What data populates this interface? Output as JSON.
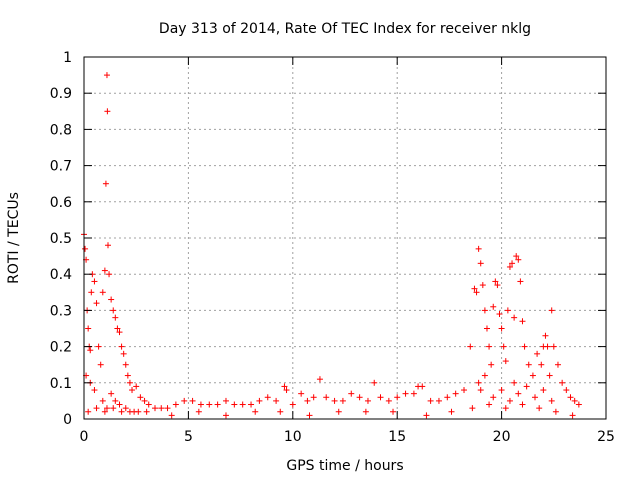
{
  "chart_data": {
    "type": "scatter",
    "title": "Day 313 of 2014, Rate Of TEC Index for receiver nklg",
    "xlabel": "GPS time / hours",
    "ylabel": "ROTI / TECUs",
    "xlim": [
      0,
      25
    ],
    "ylim": [
      0,
      1
    ],
    "xticks": [
      0,
      5,
      10,
      15,
      20,
      25
    ],
    "yticks": [
      0,
      0.1,
      0.2,
      0.3,
      0.4,
      0.5,
      0.6,
      0.7,
      0.8,
      0.9,
      1
    ],
    "xtick_labels": [
      "0",
      "5",
      "10",
      "15",
      "20",
      "25"
    ],
    "ytick_labels": [
      "0",
      "0.1",
      "0.2",
      "0.3",
      "0.4",
      "0.5",
      "0.6",
      "0.7",
      "0.8",
      "0.9",
      "1"
    ],
    "grid": true,
    "marker": "+",
    "series": [
      {
        "color": "#ff0000",
        "x": [
          0.0,
          0.05,
          0.1,
          0.15,
          0.2,
          0.25,
          0.3,
          0.35,
          0.4,
          0.5,
          0.6,
          0.7,
          0.8,
          0.9,
          1.0,
          1.05,
          1.1,
          1.12,
          1.15,
          1.2,
          1.3,
          1.4,
          1.5,
          1.6,
          1.7,
          1.8,
          1.9,
          2.0,
          2.1,
          2.2,
          2.3,
          2.5,
          2.7,
          2.9,
          3.1,
          3.4,
          3.7,
          4.0,
          4.4,
          4.8,
          5.2,
          5.6,
          6.0,
          6.4,
          6.8,
          7.2,
          7.6,
          8.0,
          8.4,
          8.8,
          9.2,
          9.6,
          9.7,
          10.0,
          10.4,
          10.7,
          11.0,
          11.3,
          11.6,
          12.0,
          12.4,
          12.8,
          13.2,
          13.6,
          13.9,
          14.2,
          14.6,
          15.0,
          15.4,
          15.8,
          16.0,
          16.2,
          16.6,
          17.0,
          17.4,
          17.8,
          18.2,
          18.5,
          18.7,
          18.8,
          18.9,
          19.0,
          19.1,
          19.2,
          19.3,
          19.4,
          19.5,
          19.6,
          19.7,
          19.8,
          19.9,
          20.0,
          20.1,
          20.2,
          20.3,
          20.4,
          20.5,
          20.6,
          20.7,
          20.8,
          20.9,
          21.0,
          21.1,
          21.3,
          21.5,
          21.7,
          21.9,
          22.0,
          22.1,
          22.2,
          22.3,
          22.4,
          22.5,
          22.7,
          22.9,
          23.1,
          23.3,
          23.5,
          23.7,
          0.1,
          0.3,
          0.5,
          0.9,
          1.1,
          1.3,
          1.5,
          1.7,
          2.0,
          2.4,
          18.9,
          19.0,
          19.2,
          19.6,
          20.0,
          20.4,
          20.6,
          20.8,
          21.2,
          21.6,
          22.0,
          22.4,
          0.2,
          0.6,
          1.0,
          1.4,
          1.8,
          2.2,
          2.6,
          3.0,
          4.2,
          5.5,
          6.8,
          8.2,
          9.4,
          10.8,
          12.2,
          13.5,
          14.8,
          16.4,
          17.6,
          18.6,
          19.4,
          20.2,
          21.0,
          21.8,
          22.6,
          23.4
        ],
        "y": [
          0.51,
          0.47,
          0.44,
          0.3,
          0.25,
          0.2,
          0.19,
          0.35,
          0.4,
          0.38,
          0.32,
          0.2,
          0.15,
          0.35,
          0.41,
          0.65,
          0.95,
          0.85,
          0.48,
          0.4,
          0.33,
          0.3,
          0.28,
          0.25,
          0.24,
          0.2,
          0.18,
          0.15,
          0.12,
          0.1,
          0.08,
          0.09,
          0.06,
          0.05,
          0.04,
          0.03,
          0.03,
          0.03,
          0.04,
          0.05,
          0.05,
          0.04,
          0.04,
          0.04,
          0.05,
          0.04,
          0.04,
          0.04,
          0.05,
          0.06,
          0.05,
          0.09,
          0.08,
          0.04,
          0.07,
          0.05,
          0.06,
          0.11,
          0.06,
          0.05,
          0.05,
          0.07,
          0.06,
          0.05,
          0.1,
          0.06,
          0.05,
          0.06,
          0.07,
          0.07,
          0.09,
          0.09,
          0.05,
          0.05,
          0.06,
          0.07,
          0.08,
          0.2,
          0.36,
          0.35,
          0.47,
          0.43,
          0.37,
          0.3,
          0.25,
          0.2,
          0.15,
          0.31,
          0.38,
          0.37,
          0.29,
          0.25,
          0.2,
          0.16,
          0.3,
          0.42,
          0.43,
          0.28,
          0.45,
          0.44,
          0.38,
          0.27,
          0.2,
          0.15,
          0.12,
          0.18,
          0.15,
          0.2,
          0.23,
          0.2,
          0.12,
          0.3,
          0.2,
          0.15,
          0.1,
          0.08,
          0.06,
          0.05,
          0.04,
          0.12,
          0.1,
          0.08,
          0.05,
          0.03,
          0.07,
          0.05,
          0.04,
          0.03,
          0.02,
          0.1,
          0.08,
          0.12,
          0.06,
          0.08,
          0.05,
          0.1,
          0.07,
          0.09,
          0.06,
          0.08,
          0.05,
          0.02,
          0.03,
          0.02,
          0.03,
          0.02,
          0.02,
          0.02,
          0.02,
          0.01,
          0.02,
          0.01,
          0.02,
          0.02,
          0.01,
          0.02,
          0.02,
          0.02,
          0.01,
          0.02,
          0.03,
          0.04,
          0.03,
          0.04,
          0.03,
          0.02,
          0.01
        ]
      }
    ]
  }
}
